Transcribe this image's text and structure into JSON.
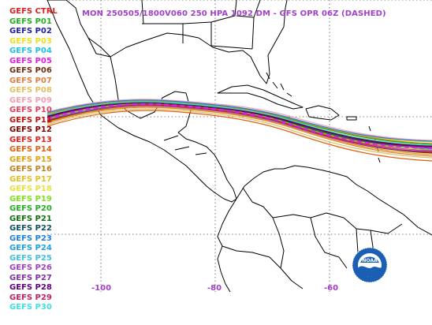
{
  "title": "MON 250505/1800V060  250 HPA 1092 DM - GFS OPR 06Z (DASHED)",
  "legend": [
    {
      "label": "GEFS CTRL",
      "color": "#e02020"
    },
    {
      "label": "GEFS P01",
      "color": "#20b020"
    },
    {
      "label": "GEFS P02",
      "color": "#2020a0"
    },
    {
      "label": "GEFS P03",
      "color": "#e8e020"
    },
    {
      "label": "GEFS P04",
      "color": "#20c0e0"
    },
    {
      "label": "GEFS P05",
      "color": "#e020e0"
    },
    {
      "label": "GEFS P06",
      "color": "#703010"
    },
    {
      "label": "GEFS P07",
      "color": "#e08040"
    },
    {
      "label": "GEFS P08",
      "color": "#e0c060"
    },
    {
      "label": "GEFS P09",
      "color": "#f0a0b0"
    },
    {
      "label": "GEFS P10",
      "color": "#e04060"
    },
    {
      "label": "GEFS P11",
      "color": "#c01010"
    },
    {
      "label": "GEFS P12",
      "color": "#800000"
    },
    {
      "label": "GEFS P13",
      "color": "#e02020"
    },
    {
      "label": "GEFS P14",
      "color": "#e06010"
    },
    {
      "label": "GEFS P15",
      "color": "#e0a010"
    },
    {
      "label": "GEFS P16",
      "color": "#c08020"
    },
    {
      "label": "GEFS P17",
      "color": "#e0c020"
    },
    {
      "label": "GEFS P18",
      "color": "#e8e040"
    },
    {
      "label": "GEFS P19",
      "color": "#80e020"
    },
    {
      "label": "GEFS P20",
      "color": "#20b020"
    },
    {
      "label": "GEFS P21",
      "color": "#107010"
    },
    {
      "label": "GEFS P22",
      "color": "#105060"
    },
    {
      "label": "GEFS P23",
      "color": "#2080e0"
    },
    {
      "label": "GEFS P24",
      "color": "#20a0e0"
    },
    {
      "label": "GEFS P25",
      "color": "#40c0e0"
    },
    {
      "label": "GEFS P26",
      "color": "#a040c0"
    },
    {
      "label": "GEFS P27",
      "color": "#8030a0"
    },
    {
      "label": "GEFS P28",
      "color": "#600080"
    },
    {
      "label": "GEFS P29",
      "color": "#c02060"
    },
    {
      "label": "GEFS P30",
      "color": "#40e0e0"
    }
  ],
  "axes": {
    "lon_labels": [
      "-100",
      "-80",
      "-60"
    ],
    "label_color": "#a040c8"
  },
  "logo": {
    "text": "NOAA"
  }
}
